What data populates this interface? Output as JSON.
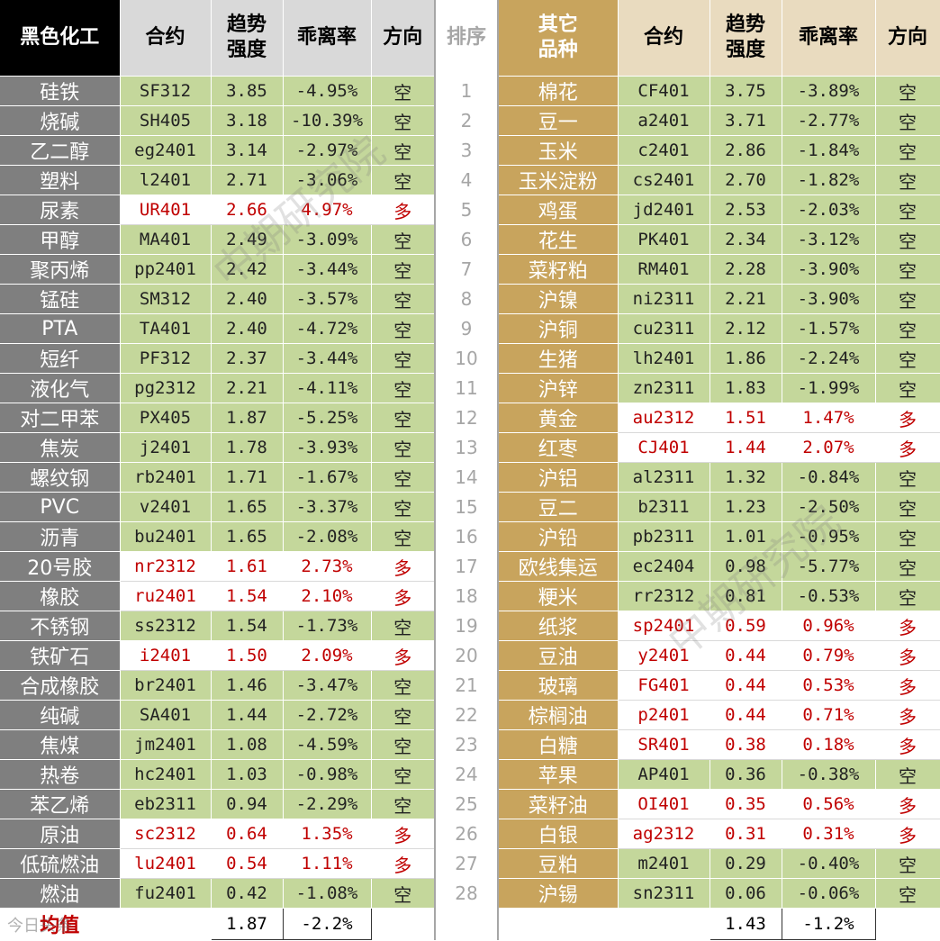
{
  "headers": {
    "left_category": "黑色化工",
    "contract": "合约",
    "trend_line1": "趋势",
    "trend_line2": "强度",
    "deviation": "乖离率",
    "direction": "方向",
    "rank": "排序",
    "right_category_line1": "其它",
    "right_category_line2": "品种"
  },
  "left": [
    {
      "name": "硅铁",
      "contract": "SF312",
      "trend": "3.85",
      "dev": "-4.95%",
      "dir": "空"
    },
    {
      "name": "烧碱",
      "contract": "SH405",
      "trend": "3.18",
      "dev": "-10.39%",
      "dir": "空"
    },
    {
      "name": "乙二醇",
      "contract": "eg2401",
      "trend": "3.14",
      "dev": "-2.97%",
      "dir": "空"
    },
    {
      "name": "塑料",
      "contract": "l2401",
      "trend": "2.71",
      "dev": "-3.06%",
      "dir": "空"
    },
    {
      "name": "尿素",
      "contract": "UR401",
      "trend": "2.66",
      "dev": "4.97%",
      "dir": "多"
    },
    {
      "name": "甲醇",
      "contract": "MA401",
      "trend": "2.49",
      "dev": "-3.09%",
      "dir": "空"
    },
    {
      "name": "聚丙烯",
      "contract": "pp2401",
      "trend": "2.42",
      "dev": "-3.44%",
      "dir": "空"
    },
    {
      "name": "锰硅",
      "contract": "SM312",
      "trend": "2.40",
      "dev": "-3.57%",
      "dir": "空"
    },
    {
      "name": "PTA",
      "contract": "TA401",
      "trend": "2.40",
      "dev": "-4.72%",
      "dir": "空"
    },
    {
      "name": "短纤",
      "contract": "PF312",
      "trend": "2.37",
      "dev": "-3.44%",
      "dir": "空"
    },
    {
      "name": "液化气",
      "contract": "pg2312",
      "trend": "2.21",
      "dev": "-4.11%",
      "dir": "空"
    },
    {
      "name": "对二甲苯",
      "contract": "PX405",
      "trend": "1.87",
      "dev": "-5.25%",
      "dir": "空"
    },
    {
      "name": "焦炭",
      "contract": "j2401",
      "trend": "1.78",
      "dev": "-3.93%",
      "dir": "空"
    },
    {
      "name": "螺纹钢",
      "contract": "rb2401",
      "trend": "1.71",
      "dev": "-1.67%",
      "dir": "空"
    },
    {
      "name": "PVC",
      "contract": "v2401",
      "trend": "1.65",
      "dev": "-3.37%",
      "dir": "空"
    },
    {
      "name": "沥青",
      "contract": "bu2401",
      "trend": "1.65",
      "dev": "-2.08%",
      "dir": "空"
    },
    {
      "name": "20号胶",
      "contract": "nr2312",
      "trend": "1.61",
      "dev": "2.73%",
      "dir": "多"
    },
    {
      "name": "橡胶",
      "contract": "ru2401",
      "trend": "1.54",
      "dev": "2.10%",
      "dir": "多"
    },
    {
      "name": "不锈钢",
      "contract": "ss2312",
      "trend": "1.54",
      "dev": "-1.73%",
      "dir": "空"
    },
    {
      "name": "铁矿石",
      "contract": "i2401",
      "trend": "1.50",
      "dev": "2.09%",
      "dir": "多"
    },
    {
      "name": "合成橡胶",
      "contract": "br2401",
      "trend": "1.46",
      "dev": "-3.47%",
      "dir": "空"
    },
    {
      "name": "纯碱",
      "contract": "SA401",
      "trend": "1.44",
      "dev": "-2.72%",
      "dir": "空"
    },
    {
      "name": "焦煤",
      "contract": "jm2401",
      "trend": "1.08",
      "dev": "-4.59%",
      "dir": "空"
    },
    {
      "name": "热卷",
      "contract": "hc2401",
      "trend": "1.03",
      "dev": "-0.98%",
      "dir": "空"
    },
    {
      "name": "苯乙烯",
      "contract": "eb2311",
      "trend": "0.94",
      "dev": "-2.29%",
      "dir": "空"
    },
    {
      "name": "原油",
      "contract": "sc2312",
      "trend": "0.64",
      "dev": "1.35%",
      "dir": "多"
    },
    {
      "name": "低硫燃油",
      "contract": "lu2401",
      "trend": "0.54",
      "dev": "1.11%",
      "dir": "多"
    },
    {
      "name": "燃油",
      "contract": "fu2401",
      "trend": "0.42",
      "dev": "-1.08%",
      "dir": "空"
    }
  ],
  "right": [
    {
      "name": "棉花",
      "contract": "CF401",
      "trend": "3.75",
      "dev": "-3.89%",
      "dir": "空"
    },
    {
      "name": "豆一",
      "contract": "a2401",
      "trend": "3.71",
      "dev": "-2.77%",
      "dir": "空"
    },
    {
      "name": "玉米",
      "contract": "c2401",
      "trend": "2.86",
      "dev": "-1.84%",
      "dir": "空"
    },
    {
      "name": "玉米淀粉",
      "contract": "cs2401",
      "trend": "2.70",
      "dev": "-1.82%",
      "dir": "空"
    },
    {
      "name": "鸡蛋",
      "contract": "jd2401",
      "trend": "2.53",
      "dev": "-2.03%",
      "dir": "空"
    },
    {
      "name": "花生",
      "contract": "PK401",
      "trend": "2.34",
      "dev": "-3.12%",
      "dir": "空"
    },
    {
      "name": "菜籽粕",
      "contract": "RM401",
      "trend": "2.28",
      "dev": "-3.90%",
      "dir": "空"
    },
    {
      "name": "沪镍",
      "contract": "ni2311",
      "trend": "2.21",
      "dev": "-3.90%",
      "dir": "空"
    },
    {
      "name": "沪铜",
      "contract": "cu2311",
      "trend": "2.12",
      "dev": "-1.57%",
      "dir": "空"
    },
    {
      "name": "生猪",
      "contract": "lh2401",
      "trend": "1.86",
      "dev": "-2.24%",
      "dir": "空"
    },
    {
      "name": "沪锌",
      "contract": "zn2311",
      "trend": "1.83",
      "dev": "-1.99%",
      "dir": "空"
    },
    {
      "name": "黄金",
      "contract": "au2312",
      "trend": "1.51",
      "dev": "1.47%",
      "dir": "多"
    },
    {
      "name": "红枣",
      "contract": "CJ401",
      "trend": "1.44",
      "dev": "2.07%",
      "dir": "多"
    },
    {
      "name": "沪铝",
      "contract": "al2311",
      "trend": "1.32",
      "dev": "-0.84%",
      "dir": "空"
    },
    {
      "name": "豆二",
      "contract": "b2311",
      "trend": "1.23",
      "dev": "-2.50%",
      "dir": "空"
    },
    {
      "name": "沪铅",
      "contract": "pb2311",
      "trend": "1.01",
      "dev": "-0.95%",
      "dir": "空"
    },
    {
      "name": "欧线集运",
      "contract": "ec2404",
      "trend": "0.98",
      "dev": "-5.77%",
      "dir": "空"
    },
    {
      "name": "粳米",
      "contract": "rr2312",
      "trend": "0.81",
      "dev": "-0.53%",
      "dir": "空"
    },
    {
      "name": "纸浆",
      "contract": "sp2401",
      "trend": "0.59",
      "dev": "0.96%",
      "dir": "多"
    },
    {
      "name": "豆油",
      "contract": "y2401",
      "trend": "0.44",
      "dev": "0.79%",
      "dir": "多"
    },
    {
      "name": "玻璃",
      "contract": "FG401",
      "trend": "0.44",
      "dev": "0.53%",
      "dir": "多"
    },
    {
      "name": "棕榈油",
      "contract": "p2401",
      "trend": "0.44",
      "dev": "0.71%",
      "dir": "多"
    },
    {
      "name": "白糖",
      "contract": "SR401",
      "trend": "0.38",
      "dev": "0.18%",
      "dir": "多"
    },
    {
      "name": "苹果",
      "contract": "AP401",
      "trend": "0.36",
      "dev": "-0.38%",
      "dir": "空"
    },
    {
      "name": "菜籽油",
      "contract": "OI401",
      "trend": "0.35",
      "dev": "0.56%",
      "dir": "多"
    },
    {
      "name": "白银",
      "contract": "ag2312",
      "trend": "0.31",
      "dev": "0.31%",
      "dir": "多"
    },
    {
      "name": "豆粕",
      "contract": "m2401",
      "trend": "0.29",
      "dev": "-0.40%",
      "dir": "空"
    },
    {
      "name": "沪锡",
      "contract": "sn2311",
      "trend": "0.06",
      "dev": "-0.06%",
      "dir": "空"
    }
  ],
  "average": {
    "label": "均值",
    "left_trend": "1.87",
    "left_dev": "-2.2%",
    "right_trend": "1.43",
    "right_dev": "-1.2%"
  },
  "watermark": {
    "text": "中期研究院",
    "logo_text": "今日头条"
  }
}
